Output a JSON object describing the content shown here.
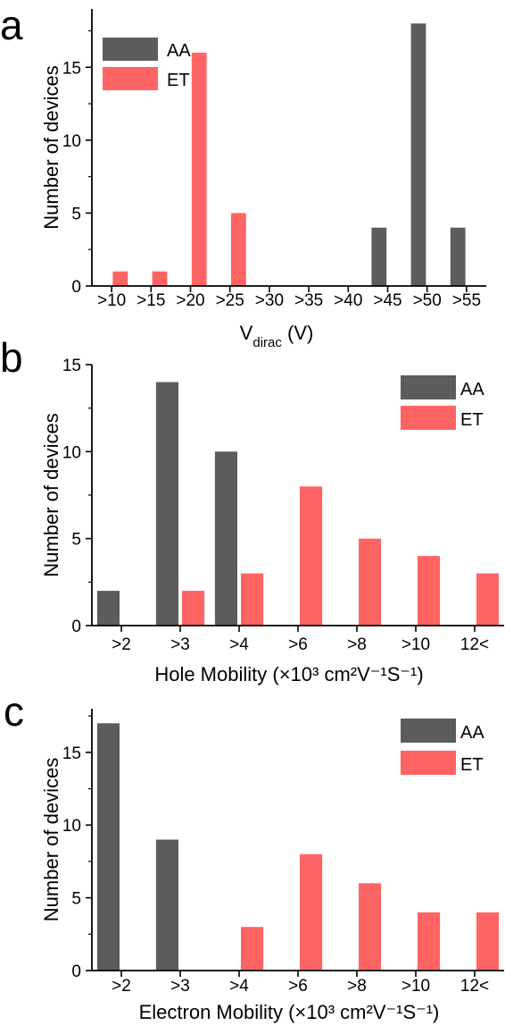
{
  "colors": {
    "AA": "#5c5c5c",
    "ET": "#ff6464",
    "axis": "#000000"
  },
  "chart_data": [
    {
      "panel": "a",
      "type": "bar",
      "categories": [
        ">10",
        ">15",
        ">20",
        ">25",
        ">30",
        ">35",
        ">40",
        ">45",
        ">50",
        ">55"
      ],
      "series": [
        {
          "name": "AA",
          "values": [
            0,
            0,
            0,
            0,
            0,
            0,
            0,
            4,
            18,
            4
          ]
        },
        {
          "name": "ET",
          "values": [
            1,
            1,
            16,
            5,
            0,
            0,
            0,
            0,
            0,
            0
          ]
        }
      ],
      "xlabel": "V",
      "xlabel_sub": "dirac",
      "xlabel_suffix": " (V)",
      "ylabel": "Number of devices",
      "ylim": [
        0,
        19
      ],
      "yticks": [
        0,
        5,
        10,
        15
      ],
      "legend": "top-left"
    },
    {
      "panel": "b",
      "type": "bar",
      "categories": [
        ">2",
        ">3",
        ">4",
        ">6",
        ">8",
        ">10",
        "12<"
      ],
      "series": [
        {
          "name": "AA",
          "values": [
            2,
            14,
            10,
            0,
            0,
            0,
            0
          ]
        },
        {
          "name": "ET",
          "values": [
            0,
            2,
            3,
            8,
            5,
            4,
            3
          ]
        }
      ],
      "xlabel": "Hole Mobility (×10³ cm²V⁻¹S⁻¹)",
      "ylabel": "Number of devices",
      "ylim": [
        0,
        15
      ],
      "yticks": [
        0,
        5,
        10,
        15
      ],
      "legend": "top-right"
    },
    {
      "panel": "c",
      "type": "bar",
      "categories": [
        ">2",
        ">3",
        ">4",
        ">6",
        ">8",
        ">10",
        "12<"
      ],
      "series": [
        {
          "name": "AA",
          "values": [
            17,
            9,
            0,
            0,
            0,
            0,
            0
          ]
        },
        {
          "name": "ET",
          "values": [
            0,
            0,
            3,
            8,
            6,
            4,
            4
          ]
        }
      ],
      "xlabel": "Electron Mobility (×10³ cm²V⁻¹S⁻¹)",
      "ylabel": "Number of devices",
      "ylim": [
        0,
        18
      ],
      "yticks": [
        0,
        5,
        10,
        15
      ],
      "legend": "top-right"
    }
  ]
}
